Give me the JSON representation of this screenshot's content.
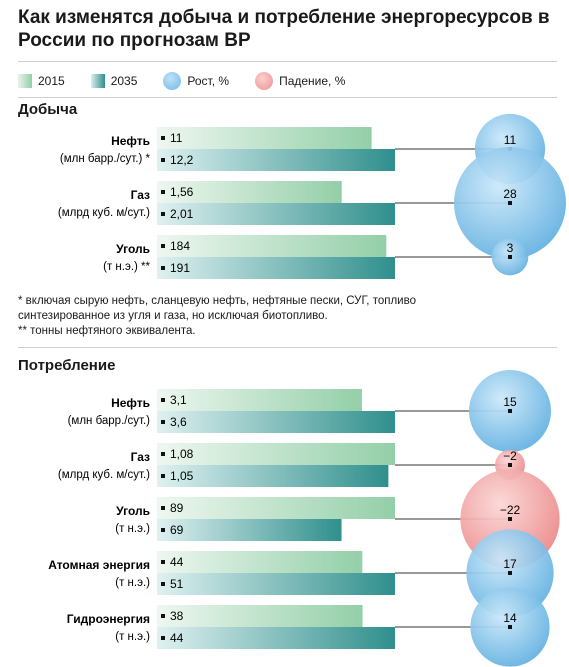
{
  "title": "Как изменятся добыча и потребление энергоресурсов в России по прогнозам BP",
  "legend": {
    "y2015": "2015",
    "y2035": "2035",
    "growth": "Рост, %",
    "decline": "Падение, %"
  },
  "colors": {
    "bar2015_light": "#e8f4ea",
    "bar2015_dark": "#93cfa8",
    "bar2035_light": "#d9efef",
    "bar2035_dark": "#2f8f8c",
    "growth_bubble": "#6fb8e6",
    "decline_bubble": "#ef8f8f"
  },
  "footnotes": [
    "* включая сырую нефть, сланцевую нефть, нефтяные пески, СУГ, топливо",
    "синтезированное из угля и газа, но исключая биотопливо.",
    "** тонны нефтяного эквивалента."
  ],
  "chart_data": [
    {
      "type": "bar",
      "title": "Добыча",
      "rows": [
        {
          "name": "Нефть",
          "unit": "(млн барр./сут.) *",
          "v2015": "11",
          "v2035": "12,2",
          "change": 11
        },
        {
          "name": "Газ",
          "unit": "(млрд куб. м/сут.)",
          "v2015": "1,56",
          "v2035": "2,01",
          "change": 28
        },
        {
          "name": "Уголь",
          "unit": "(т н.э.) **",
          "v2015": "184",
          "v2035": "191",
          "change": 3
        }
      ]
    },
    {
      "type": "bar",
      "title": "Потребление",
      "rows": [
        {
          "name": "Нефть",
          "unit": "(млн барр./сут.)",
          "v2015": "3,1",
          "v2035": "3,6",
          "change": 15
        },
        {
          "name": "Газ",
          "unit": "(млрд куб. м/сут.)",
          "v2015": "1,08",
          "v2035": "1,05",
          "change": -2
        },
        {
          "name": "Уголь",
          "unit": "(т н.э.)",
          "v2015": "89",
          "v2035": "69",
          "change": -22
        },
        {
          "name": "Атомная энергия",
          "unit": "(т н.э.)",
          "v2015": "44",
          "v2035": "51",
          "change": 17
        },
        {
          "name": "Гидроэнергия",
          "unit": "(т н.э.)",
          "v2015": "38",
          "v2035": "44",
          "change": 14
        }
      ]
    }
  ]
}
